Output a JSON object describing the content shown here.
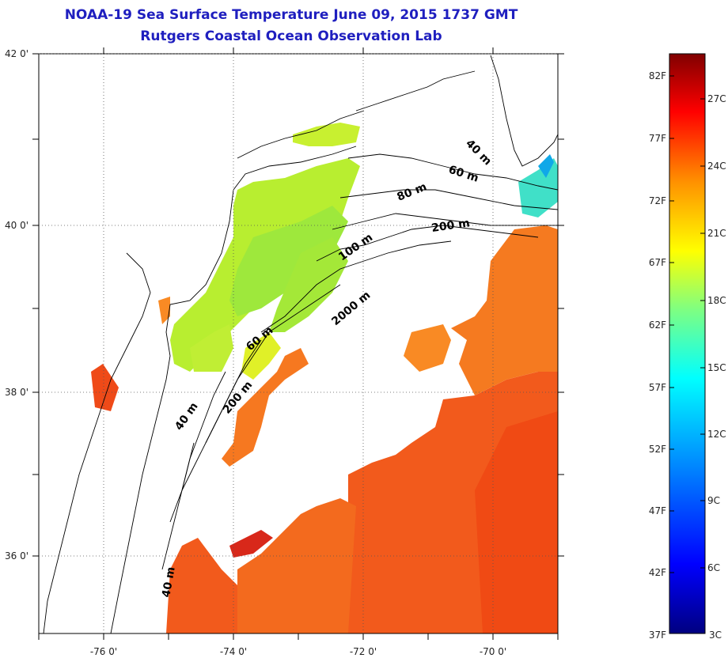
{
  "title": {
    "line1": "NOAA-19 Sea Surface Temperature June 09, 2015 1737 GMT",
    "line2": "Rutgers Coastal Ocean Observation Lab"
  },
  "map": {
    "lat_ticks": [
      "42 0'",
      "40 0'",
      "38 0'",
      "36 0'"
    ],
    "lon_ticks": [
      "-76 0'",
      "-74 0'",
      "-72 0'",
      "-70 0'"
    ],
    "lat_range": [
      35.0,
      42.0
    ],
    "lon_range": [
      -77.0,
      -69.0
    ],
    "grid": "dotted",
    "contour_labels": [
      "40 m",
      "60 m",
      "80 m",
      "200 m",
      "100 m",
      "2000 m",
      "60 m",
      "200 m",
      "40 m",
      "40 m"
    ]
  },
  "colorbar": {
    "f_labels": [
      "82F",
      "77F",
      "72F",
      "67F",
      "62F",
      "57F",
      "52F",
      "47F",
      "42F",
      "37F"
    ],
    "c_labels": [
      "27C",
      "24C",
      "21C",
      "18C",
      "15C",
      "12C",
      "9C",
      "6C",
      "3C"
    ],
    "range_c": [
      3,
      28
    ],
    "colors": [
      "#000080",
      "#0000ff",
      "#00a0ff",
      "#00ffff",
      "#80ff80",
      "#ffff00",
      "#ff9000",
      "#ff0000",
      "#800000"
    ]
  }
}
